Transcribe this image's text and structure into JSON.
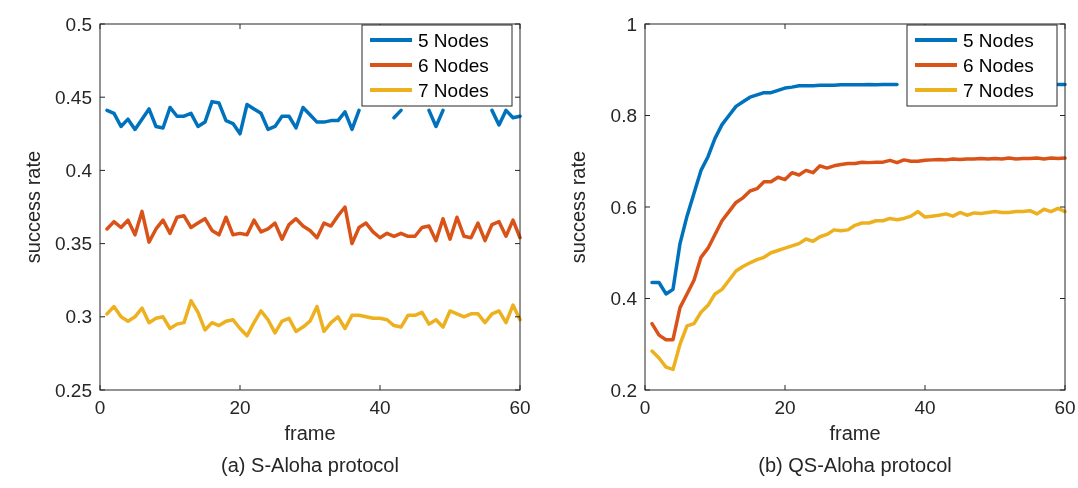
{
  "chart_data": [
    {
      "type": "line",
      "xlabel": "frame",
      "ylabel": "success rate",
      "annotations": [
        "(a) S-Aloha protocol"
      ],
      "xlim": [
        0,
        60
      ],
      "ylim": [
        0.25,
        0.5
      ],
      "xticks": [
        0,
        20,
        40,
        60
      ],
      "yticks": [
        0.25,
        0.3,
        0.35,
        0.4,
        0.45,
        0.5
      ],
      "legend": "top right",
      "grid": false,
      "x": [
        1,
        2,
        3,
        4,
        5,
        6,
        7,
        8,
        9,
        10,
        11,
        12,
        13,
        14,
        15,
        16,
        17,
        18,
        19,
        20,
        21,
        22,
        23,
        24,
        25,
        26,
        27,
        28,
        29,
        30,
        31,
        32,
        33,
        34,
        35,
        36,
        37,
        38,
        39,
        40,
        41,
        42,
        43,
        44,
        45,
        46,
        47,
        48,
        49,
        50,
        51,
        52,
        53,
        54,
        55,
        56,
        57,
        58,
        59,
        60
      ],
      "series": [
        {
          "name": "5 Nodes",
          "color": "#0072bd",
          "values": [
            0.441,
            0.439,
            0.43,
            0.435,
            0.428,
            0.435,
            0.442,
            0.43,
            0.429,
            0.443,
            0.437,
            0.437,
            0.439,
            0.43,
            0.433,
            0.447,
            0.446,
            0.434,
            0.432,
            0.425,
            0.445,
            0.442,
            0.439,
            0.428,
            0.43,
            0.437,
            0.437,
            0.429,
            0.443,
            0.438,
            0.433,
            0.433,
            0.434,
            0.434,
            0.44,
            0.428,
            0.441,
            null,
            null,
            null,
            null,
            0.436,
            0.441,
            null,
            null,
            null,
            0.441,
            0.43,
            0.441,
            null,
            null,
            null,
            null,
            null,
            null,
            0.441,
            0.431,
            0.441,
            0.436,
            0.437
          ]
        },
        {
          "name": "6 Nodes",
          "color": "#d95319",
          "values": [
            0.36,
            0.365,
            0.361,
            0.366,
            0.356,
            0.372,
            0.351,
            0.36,
            0.366,
            0.357,
            0.368,
            0.369,
            0.361,
            0.364,
            0.367,
            0.359,
            0.356,
            0.368,
            0.356,
            0.357,
            0.356,
            0.366,
            0.358,
            0.36,
            0.364,
            0.353,
            0.363,
            0.367,
            0.362,
            0.359,
            0.354,
            0.364,
            0.362,
            0.369,
            0.375,
            0.35,
            0.361,
            0.364,
            0.358,
            0.354,
            0.357,
            0.355,
            0.357,
            0.355,
            0.355,
            0.361,
            0.362,
            0.352,
            0.367,
            0.353,
            0.368,
            0.355,
            0.354,
            0.364,
            0.352,
            0.363,
            0.365,
            0.355,
            0.366,
            0.354
          ]
        },
        {
          "name": "7 Nodes",
          "color": "#edb120",
          "values": [
            0.302,
            0.307,
            0.3,
            0.297,
            0.3,
            0.306,
            0.296,
            0.299,
            0.3,
            0.292,
            0.295,
            0.296,
            0.311,
            0.303,
            0.291,
            0.296,
            0.294,
            0.297,
            0.298,
            0.292,
            0.287,
            0.296,
            0.304,
            0.298,
            0.289,
            0.297,
            0.299,
            0.29,
            0.293,
            0.297,
            0.307,
            0.29,
            0.296,
            0.3,
            0.292,
            0.301,
            0.301,
            0.3,
            0.299,
            0.299,
            0.298,
            0.294,
            0.293,
            0.301,
            0.301,
            0.303,
            0.295,
            0.298,
            0.293,
            0.304,
            0.302,
            0.3,
            0.302,
            0.302,
            0.296,
            0.302,
            0.304,
            0.296,
            0.308,
            0.298
          ]
        }
      ]
    },
    {
      "type": "line",
      "xlabel": "frame",
      "ylabel": "success rate",
      "annotations": [
        "(b) QS-Aloha protocol"
      ],
      "xlim": [
        0,
        60
      ],
      "ylim": [
        0.2,
        1
      ],
      "xticks": [
        0,
        20,
        40,
        60
      ],
      "yticks": [
        0.2,
        0.4,
        0.6,
        0.8,
        1
      ],
      "legend": "top right",
      "grid": false,
      "x": [
        1,
        2,
        3,
        4,
        5,
        6,
        7,
        8,
        9,
        10,
        11,
        12,
        13,
        14,
        15,
        16,
        17,
        18,
        19,
        20,
        21,
        22,
        23,
        24,
        25,
        26,
        27,
        28,
        29,
        30,
        31,
        32,
        33,
        34,
        35,
        36,
        37,
        38,
        39,
        40,
        41,
        42,
        43,
        44,
        45,
        46,
        47,
        48,
        49,
        50,
        51,
        52,
        53,
        54,
        55,
        56,
        57,
        58,
        59,
        60
      ],
      "series": [
        {
          "name": "5 Nodes",
          "color": "#0072bd",
          "values": [
            0.435,
            0.435,
            0.41,
            0.42,
            0.52,
            0.58,
            0.63,
            0.68,
            0.71,
            0.75,
            0.78,
            0.8,
            0.82,
            0.83,
            0.84,
            0.845,
            0.85,
            0.85,
            0.855,
            0.86,
            0.862,
            0.865,
            0.865,
            0.865,
            0.866,
            0.866,
            0.866,
            0.867,
            0.867,
            0.867,
            0.867,
            0.868,
            0.867,
            0.868,
            0.868,
            0.868,
            null,
            null,
            null,
            null,
            null,
            null,
            null,
            null,
            null,
            null,
            null,
            null,
            null,
            null,
            null,
            null,
            null,
            null,
            null,
            null,
            null,
            null,
            0.868,
            0.868
          ]
        },
        {
          "name": "6 Nodes",
          "color": "#d95319",
          "values": [
            0.345,
            0.32,
            0.31,
            0.31,
            0.38,
            0.41,
            0.44,
            0.49,
            0.51,
            0.54,
            0.57,
            0.59,
            0.61,
            0.62,
            0.635,
            0.64,
            0.655,
            0.655,
            0.665,
            0.66,
            0.675,
            0.67,
            0.68,
            0.675,
            0.69,
            0.685,
            0.69,
            0.693,
            0.695,
            0.695,
            0.698,
            0.697,
            0.698,
            0.698,
            0.702,
            0.697,
            0.703,
            0.7,
            0.7,
            0.702,
            0.703,
            0.704,
            0.703,
            0.705,
            0.704,
            0.705,
            0.705,
            0.706,
            0.705,
            0.706,
            0.705,
            0.707,
            0.705,
            0.706,
            0.706,
            0.707,
            0.705,
            0.707,
            0.706,
            0.707
          ]
        },
        {
          "name": "7 Nodes",
          "color": "#edb120",
          "values": [
            0.285,
            0.27,
            0.25,
            0.245,
            0.3,
            0.34,
            0.345,
            0.37,
            0.385,
            0.41,
            0.42,
            0.44,
            0.46,
            0.47,
            0.478,
            0.485,
            0.49,
            0.5,
            0.505,
            0.51,
            0.515,
            0.52,
            0.53,
            0.525,
            0.535,
            0.54,
            0.55,
            0.548,
            0.55,
            0.56,
            0.565,
            0.565,
            0.57,
            0.57,
            0.575,
            0.572,
            0.575,
            0.58,
            0.59,
            0.578,
            0.58,
            0.582,
            0.585,
            0.58,
            0.588,
            0.582,
            0.587,
            0.586,
            0.588,
            0.59,
            0.588,
            0.588,
            0.59,
            0.59,
            0.592,
            0.585,
            0.595,
            0.59,
            0.597,
            0.59
          ]
        }
      ]
    }
  ]
}
